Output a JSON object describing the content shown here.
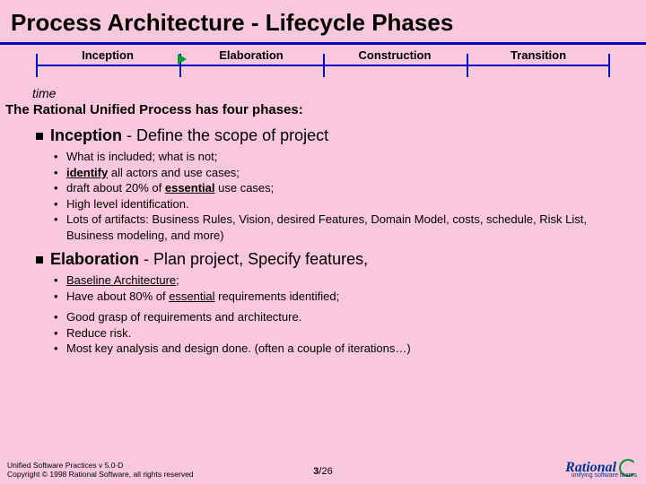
{
  "title": "Process Architecture - Lifecycle Phases",
  "phases": [
    "Inception",
    "Elaboration",
    "Construction",
    "Transition"
  ],
  "timeLabel": "time",
  "intro": "The Rational Unified Process has four phases:",
  "sections": [
    {
      "name": "Inception",
      "desc": " - Define the scope of project",
      "bullets": [
        {
          "parts": [
            {
              "t": "What is included;  what is not;"
            }
          ]
        },
        {
          "parts": [
            {
              "t": "identify",
              "u": true,
              "b": true
            },
            {
              "t": " all actors and use cases;"
            }
          ]
        },
        {
          "parts": [
            {
              "t": "draft about 20% of "
            },
            {
              "t": "essential",
              "u": true,
              "b": true
            },
            {
              "t": " use cases;"
            }
          ]
        },
        {
          "parts": [
            {
              "t": "High level identification."
            }
          ]
        },
        {
          "parts": [
            {
              "t": "Lots of artifacts:  Business Rules, Vision, desired Features, Domain Model, costs, schedule, Risk List, Business modeling, and more)"
            }
          ]
        }
      ]
    },
    {
      "name": "Elaboration",
      "desc": " - Plan project, Specify features,",
      "bullets": [
        {
          "parts": [
            {
              "t": "Baseline Architecture",
              "u": true
            },
            {
              "t": ";"
            }
          ]
        },
        {
          "parts": [
            {
              "t": "Have about 80% of "
            },
            {
              "t": "essential",
              "u": true
            },
            {
              "t": " requirements identified;"
            }
          ]
        },
        {
          "parts": [
            {
              "t": "Good grasp of requirements and architecture."
            }
          ],
          "gap": true
        },
        {
          "parts": [
            {
              "t": "Reduce risk."
            }
          ]
        },
        {
          "parts": [
            {
              "t": "Most key analysis and design done.  (often a couple of iterations…)"
            }
          ]
        }
      ]
    }
  ],
  "footer": {
    "line1": "Unified Software Practices v 5.0-D",
    "line2": "Copyright © 1998 Rational Software, all rights reserved"
  },
  "page": {
    "current": "3",
    "total": "/26"
  },
  "logo": {
    "name": "Rational",
    "sub": "unifying software teams"
  },
  "colors": {
    "bg": "#f9c8dc",
    "line": "#0000cc",
    "arrow": "#009933"
  }
}
